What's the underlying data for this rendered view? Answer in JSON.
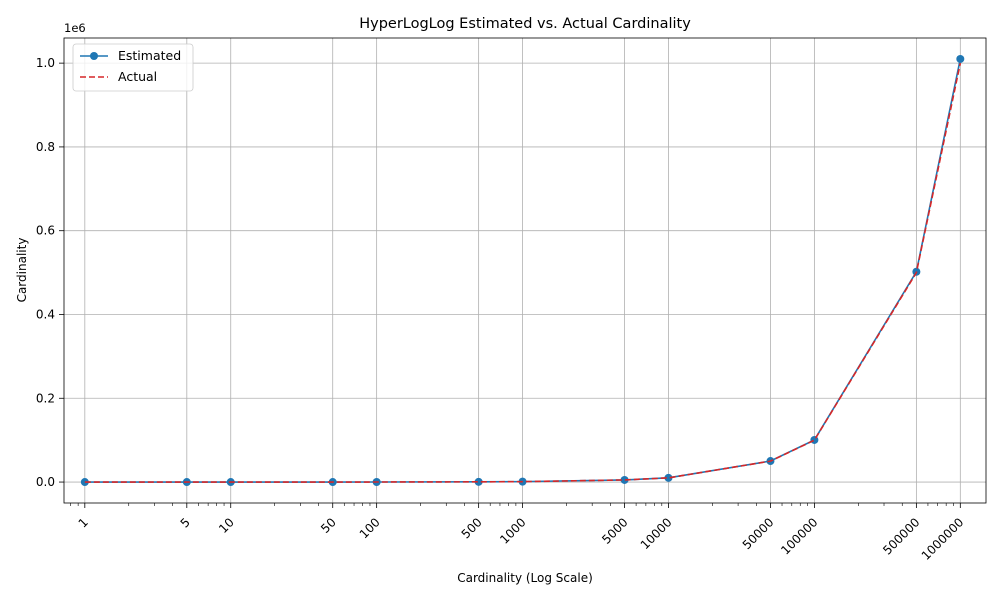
{
  "chart_data": {
    "type": "line",
    "title": "HyperLogLog Estimated vs. Actual Cardinality",
    "xlabel": "Cardinality (Log Scale)",
    "ylabel": "Cardinality",
    "xscale": "log",
    "x_ticks": [
      "1",
      "5",
      "10",
      "50",
      "100",
      "500",
      "1000",
      "5000",
      "10000",
      "50000",
      "100000",
      "500000",
      "1000000"
    ],
    "x_tick_values": [
      1,
      5,
      10,
      50,
      100,
      500,
      1000,
      5000,
      10000,
      50000,
      100000,
      500000,
      1000000
    ],
    "y_ticks": [
      "0.0",
      "0.2",
      "0.4",
      "0.6",
      "0.8",
      "1.0"
    ],
    "y_tick_values": [
      0,
      200000,
      400000,
      600000,
      800000,
      1000000
    ],
    "y_offset_label": "1e6",
    "xlim": [
      0.72,
      1500000
    ],
    "ylim": [
      -50000,
      1060000
    ],
    "grid": true,
    "legend_position": "upper-left",
    "x": [
      1,
      5,
      10,
      50,
      100,
      500,
      1000,
      5000,
      10000,
      50000,
      100000,
      500000,
      1000000
    ],
    "series": [
      {
        "name": "Estimated",
        "color": "#1f77b4",
        "style": "solid",
        "marker": "circle",
        "values": [
          1,
          5,
          10,
          50,
          100,
          502,
          1005,
          5020,
          10050,
          50200,
          100500,
          502000,
          1010000
        ]
      },
      {
        "name": "Actual",
        "color": "#d62728",
        "style": "dashed",
        "marker": "none",
        "values": [
          1,
          5,
          10,
          50,
          100,
          500,
          1000,
          5000,
          10000,
          50000,
          100000,
          500000,
          1000000
        ]
      }
    ]
  }
}
